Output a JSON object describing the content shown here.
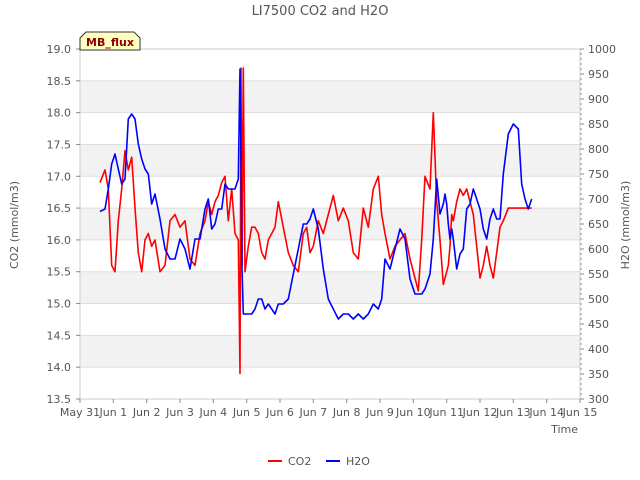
{
  "chart_data": {
    "type": "line",
    "title": "LI7500 CO2 and H2O",
    "xlabel": "Time",
    "ylabel_left": "CO2 (mmol/m3)",
    "ylabel_right": "H2O (mmol/m3)",
    "badge": "MB_flux",
    "x_ticks": [
      "May 31",
      "Jun 1",
      "Jun 2",
      "Jun 3",
      "Jun 4",
      "Jun 5",
      "Jun 6",
      "Jun 7",
      "Jun 8",
      "Jun 9",
      "Jun 10",
      "Jun 11",
      "Jun 12",
      "Jun 13",
      "Jun 14",
      "Jun 15"
    ],
    "xlim": [
      0,
      15
    ],
    "ylim_left": [
      13.5,
      19.0
    ],
    "y_ticks_left": [
      "13.5",
      "14.0",
      "14.5",
      "15.0",
      "15.5",
      "16.0",
      "16.5",
      "17.0",
      "17.5",
      "18.0",
      "18.5",
      "19.0"
    ],
    "ylim_right": [
      300,
      1000
    ],
    "y_ticks_right": [
      "300",
      "350",
      "400",
      "450",
      "500",
      "550",
      "600",
      "650",
      "700",
      "750",
      "800",
      "850",
      "900",
      "950",
      "1000"
    ],
    "legend": [
      "CO2",
      "H2O"
    ],
    "series": [
      {
        "name": "CO2",
        "color": "#ff0000",
        "axis": "left",
        "x": [
          0.6,
          0.75,
          0.85,
          0.95,
          1.05,
          1.15,
          1.25,
          1.35,
          1.45,
          1.55,
          1.65,
          1.75,
          1.85,
          1.95,
          2.05,
          2.15,
          2.25,
          2.4,
          2.55,
          2.7,
          2.85,
          3.0,
          3.15,
          3.3,
          3.45,
          3.6,
          3.75,
          3.85,
          3.95,
          4.05,
          4.15,
          4.25,
          4.35,
          4.45,
          4.55,
          4.65,
          4.75,
          4.8,
          4.83,
          4.86,
          4.9,
          4.95,
          5.05,
          5.15,
          5.25,
          5.35,
          5.45,
          5.55,
          5.65,
          5.75,
          5.85,
          5.95,
          6.1,
          6.25,
          6.4,
          6.55,
          6.7,
          6.8,
          6.9,
          7.0,
          7.15,
          7.3,
          7.45,
          7.6,
          7.75,
          7.9,
          8.05,
          8.2,
          8.35,
          8.5,
          8.65,
          8.8,
          8.95,
          9.05,
          9.15,
          9.3,
          9.45,
          9.6,
          9.75,
          9.9,
          10.05,
          10.15,
          10.25,
          10.35,
          10.5,
          10.6,
          10.7,
          10.8,
          10.9,
          10.95,
          11.0,
          11.05,
          11.1,
          11.15,
          11.2,
          11.3,
          11.4,
          11.5,
          11.6,
          11.7,
          11.8,
          11.9,
          12.0,
          12.1,
          12.2,
          12.3,
          12.4,
          12.5,
          12.6,
          12.7,
          12.85,
          13.0,
          13.15,
          13.25,
          13.35,
          13.45,
          13.55
        ],
        "values": [
          16.9,
          17.1,
          16.8,
          15.6,
          15.5,
          16.3,
          16.8,
          17.4,
          17.1,
          17.3,
          16.5,
          15.8,
          15.5,
          16.0,
          16.1,
          15.9,
          16.0,
          15.5,
          15.6,
          16.3,
          16.4,
          16.2,
          16.3,
          15.7,
          15.6,
          16.1,
          16.3,
          16.6,
          16.4,
          16.6,
          16.7,
          16.9,
          17.0,
          16.3,
          16.8,
          16.1,
          16.0,
          13.9,
          18.7,
          15.6,
          18.7,
          15.5,
          15.9,
          16.2,
          16.2,
          16.1,
          15.8,
          15.7,
          16.0,
          16.1,
          16.2,
          16.6,
          16.2,
          15.8,
          15.6,
          15.5,
          16.1,
          16.2,
          15.8,
          15.9,
          16.3,
          16.1,
          16.4,
          16.7,
          16.3,
          16.5,
          16.3,
          15.8,
          15.7,
          16.5,
          16.2,
          16.8,
          17.0,
          16.4,
          16.1,
          15.7,
          15.9,
          16.0,
          16.1,
          15.7,
          15.4,
          15.2,
          16.0,
          17.0,
          16.8,
          18.0,
          16.6,
          16.0,
          15.3,
          15.4,
          15.5,
          15.6,
          15.9,
          16.4,
          16.3,
          16.6,
          16.8,
          16.7,
          16.8,
          16.6,
          16.4,
          15.9,
          15.4,
          15.6,
          15.9,
          15.6,
          15.4,
          15.8,
          16.2,
          16.3,
          16.5,
          16.5,
          16.5,
          16.5,
          16.5,
          16.5,
          16.5
        ],
        "notes": "values are approximate readings off the plot"
      },
      {
        "name": "H2O",
        "color": "#0000ff",
        "axis": "right",
        "x": [
          0.6,
          0.75,
          0.85,
          0.95,
          1.05,
          1.15,
          1.25,
          1.35,
          1.45,
          1.55,
          1.65,
          1.75,
          1.85,
          1.95,
          2.05,
          2.15,
          2.25,
          2.4,
          2.55,
          2.7,
          2.85,
          3.0,
          3.15,
          3.3,
          3.45,
          3.6,
          3.75,
          3.85,
          3.95,
          4.05,
          4.15,
          4.25,
          4.35,
          4.45,
          4.55,
          4.65,
          4.75,
          4.8,
          4.83,
          4.86,
          4.9,
          4.95,
          5.05,
          5.15,
          5.25,
          5.35,
          5.45,
          5.55,
          5.65,
          5.75,
          5.85,
          5.95,
          6.1,
          6.25,
          6.4,
          6.55,
          6.7,
          6.8,
          6.9,
          7.0,
          7.15,
          7.3,
          7.45,
          7.6,
          7.75,
          7.9,
          8.05,
          8.2,
          8.35,
          8.5,
          8.65,
          8.8,
          8.95,
          9.05,
          9.15,
          9.3,
          9.45,
          9.6,
          9.75,
          9.9,
          10.05,
          10.15,
          10.25,
          10.35,
          10.5,
          10.6,
          10.7,
          10.8,
          10.9,
          10.95,
          11.0,
          11.05,
          11.1,
          11.15,
          11.2,
          11.3,
          11.4,
          11.5,
          11.6,
          11.7,
          11.8,
          11.9,
          12.0,
          12.1,
          12.2,
          12.3,
          12.4,
          12.5,
          12.6,
          12.7,
          12.85,
          13.0,
          13.15,
          13.25,
          13.35,
          13.45,
          13.55
        ],
        "values": [
          675,
          680,
          720,
          770,
          790,
          760,
          730,
          740,
          860,
          870,
          860,
          810,
          780,
          760,
          750,
          690,
          710,
          660,
          600,
          580,
          580,
          620,
          600,
          560,
          620,
          620,
          680,
          700,
          640,
          650,
          680,
          680,
          730,
          720,
          720,
          720,
          740,
          960,
          780,
          560,
          470,
          470,
          470,
          470,
          480,
          500,
          500,
          480,
          490,
          480,
          470,
          490,
          490,
          500,
          550,
          600,
          650,
          650,
          660,
          680,
          640,
          560,
          500,
          480,
          460,
          470,
          470,
          460,
          470,
          460,
          470,
          490,
          480,
          500,
          580,
          560,
          600,
          640,
          620,
          540,
          510,
          510,
          510,
          520,
          550,
          620,
          740,
          670,
          690,
          710,
          690,
          650,
          620,
          640,
          620,
          560,
          590,
          600,
          680,
          690,
          720,
          700,
          680,
          640,
          620,
          660,
          680,
          660,
          660,
          750,
          830,
          850,
          840,
          730,
          700,
          680,
          700
        ],
        "notes": "values are approximate readings off the plot"
      }
    ]
  }
}
